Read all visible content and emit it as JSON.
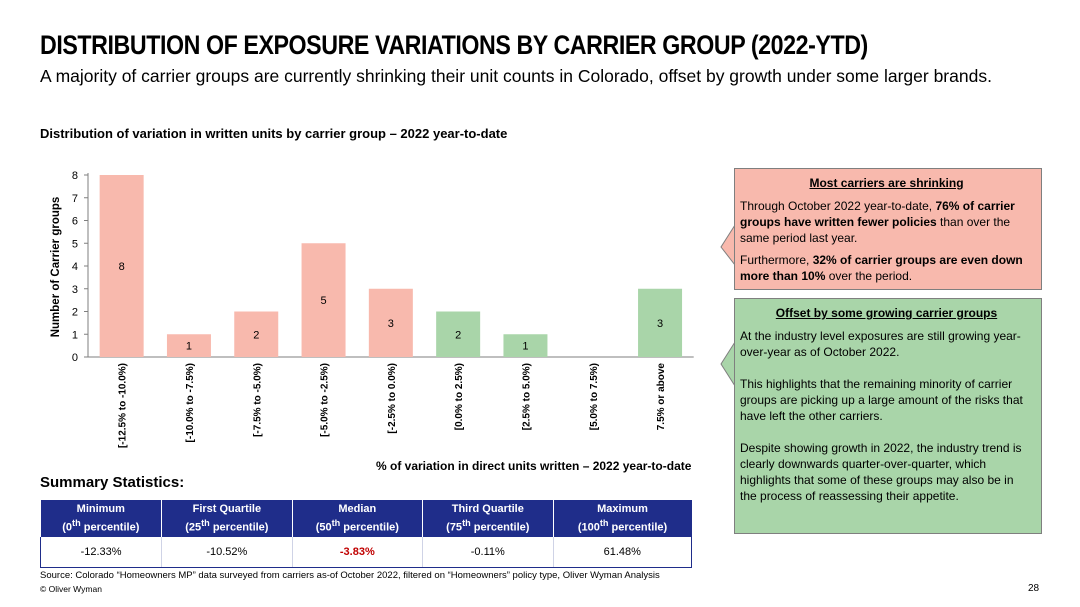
{
  "header": {
    "title": "DISTRIBUTION OF EXPOSURE VARIATIONS BY CARRIER GROUP (2022-YTD)",
    "subtitle": "A majority of carrier groups are currently shrinking their unit counts in Colorado, offset by growth under some larger brands."
  },
  "chart_data": {
    "type": "bar",
    "title": "Distribution of variation in written units by carrier group – 2022 year-to-date",
    "xlabel": "% of variation in direct units written – 2022 year-to-date",
    "ylabel": "Number of Carrier groups",
    "ylim": [
      0,
      8
    ],
    "yticks": [
      "0",
      "1",
      "2",
      "3",
      "4",
      "5",
      "6",
      "7",
      "8"
    ],
    "categories": [
      "[-12.5% to -10.0%)",
      "[-10.0% to -7.5%)",
      "[-7.5% to -5.0%)",
      "[-5.0% to -2.5%)",
      "[-2.5% to 0.0%)",
      "[0.0% to 2.5%)",
      "[2.5% to 5.0%)",
      "[5.0% to 7.5%)",
      "7.5% or above"
    ],
    "values": [
      8,
      1,
      2,
      5,
      3,
      2,
      1,
      0,
      3
    ],
    "data_labels": [
      "8",
      "1",
      "2",
      "5",
      "3",
      "2",
      "1",
      "",
      "3"
    ],
    "colors": [
      "#f8b9ad",
      "#f8b9ad",
      "#f8b9ad",
      "#f8b9ad",
      "#f8b9ad",
      "#a9d5a9",
      "#a9d5a9",
      "#a9d5a9",
      "#a9d5a9"
    ],
    "grid": false,
    "legend": "none"
  },
  "stats": {
    "title": "Summary Statistics:",
    "headers": [
      {
        "line1": "Minimum",
        "pre": "(0",
        "sup": "th",
        "post": " percentile)"
      },
      {
        "line1": "First Quartile",
        "pre": "(25",
        "sup": "th",
        "post": " percentile)"
      },
      {
        "line1": "Median",
        "pre": "(50",
        "sup": "th",
        "post": " percentile)"
      },
      {
        "line1": "Third Quartile",
        "pre": "(75",
        "sup": "th",
        "post": " percentile)"
      },
      {
        "line1": "Maximum",
        "pre": "(100",
        "sup": "th",
        "post": " percentile)"
      }
    ],
    "values": [
      "-12.33%",
      "-10.52%",
      "-3.83%",
      "-0.11%",
      "61.48%"
    ],
    "header_color": "#1f2d8a",
    "median_color": "#c00000"
  },
  "callouts": {
    "shrinking": {
      "heading": "Most carriers are shrinking",
      "p1_a": "Through October 2022 year-to-date, ",
      "p1_b": "76% of carrier groups have written fewer policies",
      "p1_c": " than over the same period last year.",
      "p2_a": "Furthermore, ",
      "p2_b": "32% of carrier groups are even down more than 10%",
      "p2_c": " over the period.",
      "color": "#f8b9ad"
    },
    "growing": {
      "heading": "Offset by some growing carrier groups",
      "p1": "At the industry level exposures are still growing year-over-year as of October 2022.",
      "p2": "This highlights that the remaining minority of carrier groups are picking up a large amount of the risks that have left the other carriers.",
      "p3": "Despite showing growth in 2022, the industry trend is clearly downwards quarter-over-quarter, which highlights that some of these groups may also be in the process of reassessing their appetite.",
      "color": "#a9d5a9"
    }
  },
  "footer": {
    "source": "Source: Colorado “Homeowners MP” data surveyed from carriers as-of October 2022, filtered on “Homeowners” policy type, Oliver Wyman Analysis",
    "copyright": "© Oliver Wyman",
    "page": "28"
  }
}
